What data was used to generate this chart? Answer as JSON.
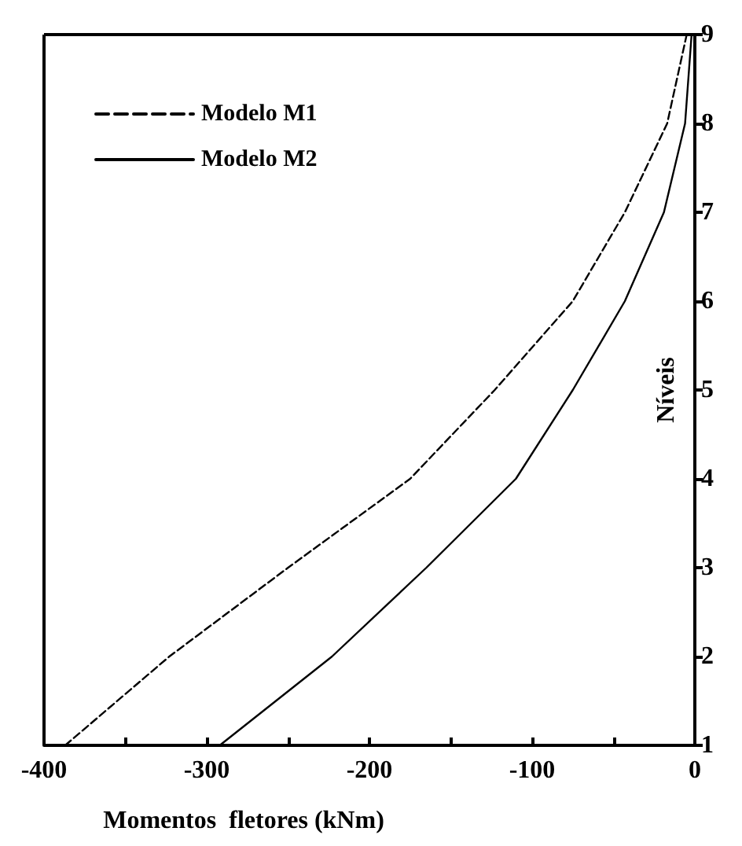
{
  "chart_data": {
    "type": "line",
    "xlabel": "Momentos  fletores (kNm)",
    "ylabel": "Níveis",
    "xlim": [
      -400,
      0
    ],
    "xticks": [
      -400,
      {
        "value": -350,
        "label": null
      },
      -300,
      {
        "value": -250,
        "label": null
      },
      -200,
      {
        "value": -150,
        "label": null
      },
      -100,
      {
        "value": -50,
        "label": null
      },
      0
    ],
    "ylim": [
      1,
      9
    ],
    "yticks": [
      1,
      2,
      3,
      4,
      5,
      6,
      7,
      8,
      9
    ],
    "legend": "top left",
    "grid": false,
    "series": [
      {
        "name": "Modelo M1",
        "color": "#000000",
        "line_style": "dashed",
        "x": [
          -387,
          -323,
          -250,
          -175,
          -123,
          -75,
          -43,
          -17,
          -5
        ],
        "values": [
          1,
          2,
          3,
          4,
          5,
          6,
          7,
          8,
          9
        ]
      },
      {
        "name": "Modelo M2",
        "color": "#000000",
        "line_style": "solid",
        "x": [
          -292,
          -223,
          -165,
          -110,
          -75,
          -43,
          -19,
          -6,
          -2
        ],
        "values": [
          1,
          2,
          3,
          4,
          5,
          6,
          7,
          8,
          9
        ]
      }
    ]
  }
}
